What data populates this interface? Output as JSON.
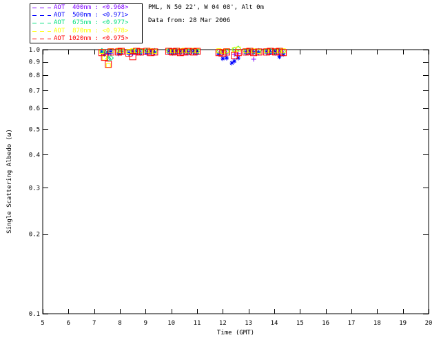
{
  "header": {
    "site": "PML, N 50 22', W 04 08', Alt 0m",
    "date": "Data from: 28 Mar 2006"
  },
  "legend": {
    "items": [
      {
        "label": "AOT  400nm : <0.968>",
        "color": "#7F00FF"
      },
      {
        "label": "AOT  500nm : <0.971>",
        "color": "#0000FF"
      },
      {
        "label": "AOT  675nm : <0.977>",
        "color": "#00E07D"
      },
      {
        "label": "AOT  870nm : <0.978>",
        "color": "#FFFF00"
      },
      {
        "label": "AOT 1020nm : <0.975>",
        "color": "#FF0000"
      }
    ]
  },
  "chart_data": {
    "type": "scatter",
    "title": "",
    "xlabel": "Time (GMT)",
    "ylabel": "Single Scattering Albedo (ω)",
    "xlim": [
      5,
      20
    ],
    "ylim": [
      0.1,
      1.0
    ],
    "yscale": "log",
    "grid": false,
    "legend_position": "top-left",
    "xticks": [
      5,
      6,
      7,
      8,
      9,
      10,
      11,
      12,
      13,
      14,
      15,
      16,
      17,
      18,
      19,
      20
    ],
    "xtick_labels": [
      "5",
      "6",
      "7",
      "8",
      "9",
      "10",
      "11",
      "12",
      "13",
      "14",
      "15",
      "16",
      "17",
      "18",
      "19",
      "20"
    ],
    "yticks": [
      1.0,
      0.9,
      0.8,
      0.7,
      0.6,
      0.5,
      0.4,
      0.3,
      0.2,
      0.1
    ],
    "ytick_labels": [
      "1.0",
      "0.9",
      "0.8",
      "0.7",
      "0.6",
      "0.5",
      "0.4",
      "0.3",
      "0.2",
      "0.1"
    ],
    "frame_color": "#000000",
    "background": "#FFFFFF",
    "series": [
      {
        "name": "AOT 400nm",
        "mean": 0.968,
        "color": "#7F00FF",
        "marker": "plus",
        "points": [
          [
            7.3,
            0.975
          ],
          [
            7.4,
            0.97
          ],
          [
            7.55,
            0.965
          ],
          [
            7.65,
            0.97
          ],
          [
            7.95,
            0.975
          ],
          [
            8.05,
            0.97
          ],
          [
            8.35,
            0.96
          ],
          [
            8.5,
            0.965
          ],
          [
            8.65,
            0.97
          ],
          [
            8.8,
            0.975
          ],
          [
            9.05,
            0.97
          ],
          [
            9.2,
            0.975
          ],
          [
            9.35,
            0.97
          ],
          [
            9.9,
            0.975
          ],
          [
            10.05,
            0.97
          ],
          [
            10.2,
            0.975
          ],
          [
            10.35,
            0.97
          ],
          [
            10.5,
            0.975
          ],
          [
            10.65,
            0.97
          ],
          [
            10.85,
            0.975
          ],
          [
            11.0,
            0.97
          ],
          [
            11.85,
            0.96
          ],
          [
            12.0,
            0.965
          ],
          [
            12.15,
            0.97
          ],
          [
            12.45,
            0.96
          ],
          [
            12.6,
            0.965
          ],
          [
            12.9,
            0.97
          ],
          [
            13.05,
            0.975
          ],
          [
            13.2,
            0.92
          ],
          [
            13.4,
            0.97
          ],
          [
            13.7,
            0.97
          ],
          [
            13.85,
            0.975
          ],
          [
            14.05,
            0.97
          ],
          [
            14.2,
            0.975
          ],
          [
            14.35,
            0.97
          ]
        ]
      },
      {
        "name": "AOT 500nm",
        "mean": 0.971,
        "color": "#0000FF",
        "marker": "asterisk",
        "points": [
          [
            7.3,
            0.98
          ],
          [
            7.4,
            0.96
          ],
          [
            7.55,
            0.975
          ],
          [
            7.65,
            0.98
          ],
          [
            7.95,
            0.965
          ],
          [
            8.05,
            0.975
          ],
          [
            8.35,
            0.97
          ],
          [
            8.5,
            0.975
          ],
          [
            8.65,
            0.98
          ],
          [
            8.8,
            0.97
          ],
          [
            9.05,
            0.975
          ],
          [
            9.2,
            0.98
          ],
          [
            9.35,
            0.975
          ],
          [
            9.9,
            0.98
          ],
          [
            10.05,
            0.975
          ],
          [
            10.2,
            0.98
          ],
          [
            10.35,
            0.98
          ],
          [
            10.5,
            0.985
          ],
          [
            10.65,
            0.975
          ],
          [
            10.85,
            0.98
          ],
          [
            11.0,
            0.975
          ],
          [
            11.85,
            0.965
          ],
          [
            12.0,
            0.925
          ],
          [
            12.15,
            0.93
          ],
          [
            12.35,
            0.89
          ],
          [
            12.45,
            0.905
          ],
          [
            12.6,
            0.93
          ],
          [
            12.9,
            0.975
          ],
          [
            13.05,
            0.98
          ],
          [
            13.2,
            0.975
          ],
          [
            13.4,
            0.975
          ],
          [
            13.7,
            0.98
          ],
          [
            13.85,
            0.975
          ],
          [
            14.05,
            0.98
          ],
          [
            14.2,
            0.94
          ],
          [
            14.35,
            0.96
          ]
        ]
      },
      {
        "name": "AOT 675nm",
        "mean": 0.977,
        "color": "#00E07D",
        "marker": "diamond",
        "points": [
          [
            7.3,
            0.99
          ],
          [
            7.4,
            0.98
          ],
          [
            7.55,
            0.925
          ],
          [
            7.65,
            0.93
          ],
          [
            7.95,
            0.99
          ],
          [
            8.05,
            0.985
          ],
          [
            8.35,
            0.98
          ],
          [
            8.5,
            0.985
          ],
          [
            8.65,
            0.99
          ],
          [
            8.8,
            0.985
          ],
          [
            9.05,
            0.99
          ],
          [
            9.2,
            0.985
          ],
          [
            9.35,
            0.99
          ],
          [
            9.9,
            0.99
          ],
          [
            10.05,
            0.985
          ],
          [
            10.2,
            0.99
          ],
          [
            10.35,
            0.985
          ],
          [
            10.5,
            0.99
          ],
          [
            10.65,
            0.985
          ],
          [
            10.85,
            0.99
          ],
          [
            11.0,
            0.985
          ],
          [
            11.85,
            0.985
          ],
          [
            12.0,
            0.98
          ],
          [
            12.15,
            0.985
          ],
          [
            12.45,
            1.0
          ],
          [
            12.6,
            1.01
          ],
          [
            12.9,
            0.985
          ],
          [
            13.05,
            0.99
          ],
          [
            13.2,
            0.985
          ],
          [
            13.4,
            0.99
          ],
          [
            13.7,
            0.985
          ],
          [
            13.85,
            0.99
          ],
          [
            14.05,
            0.985
          ],
          [
            14.2,
            0.99
          ],
          [
            14.35,
            0.985
          ]
        ]
      },
      {
        "name": "AOT 870nm",
        "mean": 0.978,
        "color": "#FFFF00",
        "marker": "square",
        "points": [
          [
            7.3,
            0.985
          ],
          [
            7.4,
            0.93
          ],
          [
            7.55,
            0.87
          ],
          [
            7.65,
            0.99
          ],
          [
            7.95,
            0.995
          ],
          [
            8.05,
            0.99
          ],
          [
            8.35,
            0.985
          ],
          [
            8.5,
            0.99
          ],
          [
            8.65,
            0.995
          ],
          [
            8.8,
            0.99
          ],
          [
            9.05,
            0.995
          ],
          [
            9.2,
            0.99
          ],
          [
            9.35,
            0.985
          ],
          [
            9.9,
            0.995
          ],
          [
            10.05,
            0.99
          ],
          [
            10.2,
            0.995
          ],
          [
            10.35,
            0.99
          ],
          [
            10.5,
            0.995
          ],
          [
            10.65,
            0.99
          ],
          [
            10.85,
            0.995
          ],
          [
            11.0,
            0.99
          ],
          [
            11.85,
            0.99
          ],
          [
            12.0,
            0.985
          ],
          [
            12.15,
            0.99
          ],
          [
            12.45,
            1.0
          ],
          [
            12.6,
            1.005
          ],
          [
            12.9,
            0.99
          ],
          [
            13.05,
            0.995
          ],
          [
            13.2,
            0.99
          ],
          [
            13.4,
            0.985
          ],
          [
            13.7,
            0.99
          ],
          [
            13.85,
            0.995
          ],
          [
            14.05,
            0.99
          ],
          [
            14.2,
            0.995
          ],
          [
            14.35,
            0.99
          ]
        ]
      },
      {
        "name": "AOT 1020nm",
        "mean": 0.975,
        "color": "#FF0000",
        "marker": "square-lg",
        "points": [
          [
            7.3,
            0.975
          ],
          [
            7.4,
            0.935
          ],
          [
            7.55,
            0.88
          ],
          [
            7.65,
            0.98
          ],
          [
            7.95,
            0.98
          ],
          [
            8.05,
            0.985
          ],
          [
            8.35,
            0.97
          ],
          [
            8.5,
            0.94
          ],
          [
            8.65,
            0.985
          ],
          [
            8.8,
            0.98
          ],
          [
            9.05,
            0.985
          ],
          [
            9.2,
            0.975
          ],
          [
            9.35,
            0.98
          ],
          [
            9.9,
            0.985
          ],
          [
            10.05,
            0.98
          ],
          [
            10.2,
            0.985
          ],
          [
            10.35,
            0.975
          ],
          [
            10.5,
            0.98
          ],
          [
            10.65,
            0.985
          ],
          [
            10.85,
            0.98
          ],
          [
            11.0,
            0.985
          ],
          [
            11.85,
            0.975
          ],
          [
            12.0,
            0.97
          ],
          [
            12.15,
            0.98
          ],
          [
            12.45,
            0.95
          ],
          [
            12.6,
            0.975
          ],
          [
            12.9,
            0.98
          ],
          [
            13.05,
            0.985
          ],
          [
            13.2,
            0.975
          ],
          [
            13.4,
            0.98
          ],
          [
            13.7,
            0.98
          ],
          [
            13.85,
            0.985
          ],
          [
            14.05,
            0.98
          ],
          [
            14.2,
            0.985
          ],
          [
            14.35,
            0.975
          ]
        ]
      }
    ]
  }
}
